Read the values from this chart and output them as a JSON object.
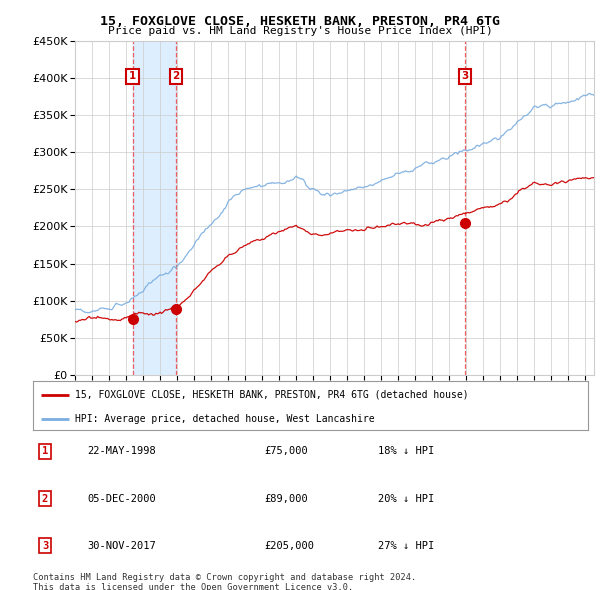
{
  "title": "15, FOXGLOVE CLOSE, HESKETH BANK, PRESTON, PR4 6TG",
  "subtitle": "Price paid vs. HM Land Registry's House Price Index (HPI)",
  "sales": [
    {
      "date_num": 1998.38,
      "price": 75000,
      "label": "1"
    },
    {
      "date_num": 2000.92,
      "price": 89000,
      "label": "2"
    },
    {
      "date_num": 2017.91,
      "price": 205000,
      "label": "3"
    }
  ],
  "legend_line1": "15, FOXGLOVE CLOSE, HESKETH BANK, PRESTON, PR4 6TG (detached house)",
  "legend_line2": "HPI: Average price, detached house, West Lancashire",
  "table_rows": [
    {
      "num": "1",
      "date": "22-MAY-1998",
      "price": "£75,000",
      "pct": "18% ↓ HPI"
    },
    {
      "num": "2",
      "date": "05-DEC-2000",
      "price": "£89,000",
      "pct": "20% ↓ HPI"
    },
    {
      "num": "3",
      "date": "30-NOV-2017",
      "price": "£205,000",
      "pct": "27% ↓ HPI"
    }
  ],
  "footnote1": "Contains HM Land Registry data © Crown copyright and database right 2024.",
  "footnote2": "This data is licensed under the Open Government Licence v3.0.",
  "red_color": "#cc0000",
  "blue_color": "#7aade0",
  "shade_color": "#ddeeff",
  "dashed_red": "#ee4444",
  "ylim": [
    0,
    450000
  ],
  "xlim_start": 1995.0,
  "xlim_end": 2025.5,
  "bg_color": "#ffffff",
  "grid_color": "#cccccc"
}
